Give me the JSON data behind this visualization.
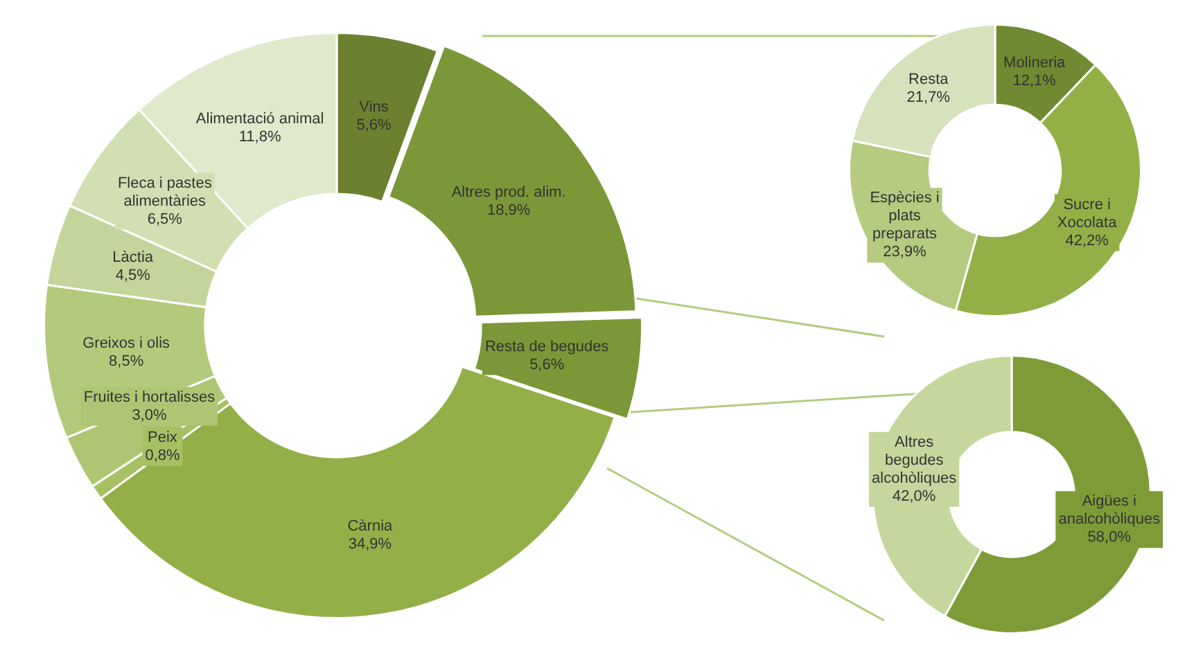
{
  "chart_data": [
    {
      "type": "donut",
      "categories": [
        "Vins",
        "Altres prod. alim.",
        "Resta de begudes",
        "Càrnia",
        "Peix",
        "Fruites i hortalisses",
        "Greixos i olis",
        "Làctia",
        "Fleca i pastes alimentàries",
        "Alimentació animal"
      ],
      "values": [
        5.6,
        18.9,
        5.6,
        34.9,
        0.8,
        3.0,
        8.5,
        4.5,
        6.5,
        11.8
      ],
      "colors": [
        "#6b8130",
        "#7a9838",
        "#7a9838",
        "#93af48",
        "#a7c064",
        "#aec673",
        "#b3ca7c",
        "#c3d59a",
        "#d1dfb2",
        "#e0e9cc"
      ],
      "value_labels": [
        "5,6%",
        "18,9%",
        "5,6%",
        "34,9%",
        "0,8%",
        "3,0%",
        "8,5%",
        "4,5%",
        "6,5%",
        "11,8%"
      ]
    },
    {
      "type": "donut",
      "categories": [
        "Molineria",
        "Sucre i Xocolata",
        "Espècies i plats preparats",
        "Resta"
      ],
      "values": [
        12.1,
        42.2,
        23.9,
        21.7
      ],
      "colors": [
        "#6f8a30",
        "#93b046",
        "#b5cb80",
        "#d6e2bc"
      ],
      "value_labels": [
        "12,1%",
        "42,2%",
        "23,9%",
        "21,7%"
      ]
    },
    {
      "type": "donut",
      "categories": [
        "Aigües i analcohòliques",
        "Altres begudes alcohòliques"
      ],
      "values": [
        58.0,
        42.0
      ],
      "colors": [
        "#7d9c38",
        "#c5d79c"
      ],
      "value_labels": [
        "58,0%",
        "42,0%"
      ]
    }
  ]
}
